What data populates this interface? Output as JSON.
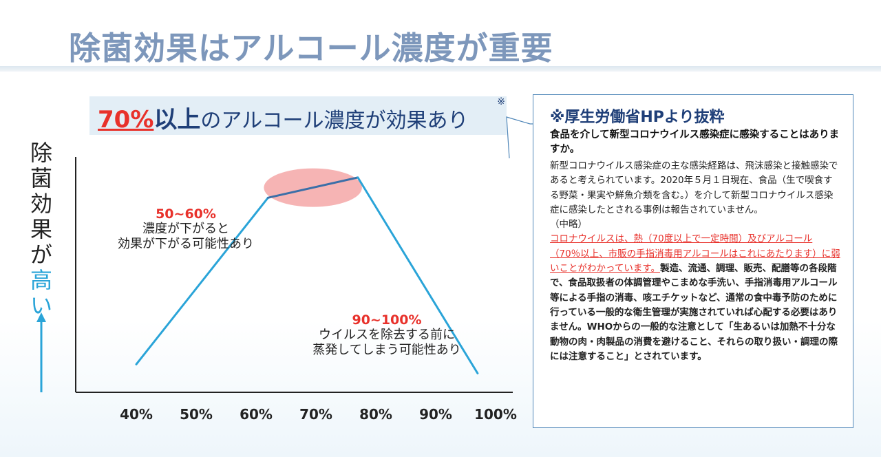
{
  "page": {
    "title": "除菌効果はアルコール濃度が重要"
  },
  "headline": {
    "percent": "70%",
    "ijo": "以上",
    "rest": "のアルコール濃度が効果あり",
    "mark": "※"
  },
  "y_axis": {
    "label_plain": "除菌効果が",
    "label_highlight": "高い"
  },
  "chart_data": {
    "type": "line",
    "title": "",
    "xlabel": "",
    "ylabel": "除菌効果が高い",
    "categories": [
      "40%",
      "50%",
      "60%",
      "70%",
      "80%",
      "90%",
      "100%"
    ],
    "x": [
      40,
      62,
      77,
      97
    ],
    "series": [
      {
        "name": "",
        "values": [
          0.1,
          0.84,
          0.93,
          0.06
        ]
      }
    ],
    "ylim": [
      0,
      1
    ],
    "highlight": {
      "x_range": [
        62,
        77
      ],
      "color": "#f4a7a7"
    },
    "line_colors": {
      "main": "#2aa4d8",
      "top": "#3b6fa8"
    },
    "annotations": [
      {
        "percent": "50~60%",
        "lines": [
          "濃度が下がると",
          "効果が下がる可能性あり"
        ]
      },
      {
        "percent": "90~100%",
        "lines": [
          "ウイルスを除去する前に",
          "蒸発してしまう可能性あり"
        ]
      }
    ]
  },
  "panel": {
    "title": "※厚生労働省HPより抜粋",
    "question": "食品を介して新型コロナウイルス感染症に感染することはありますか。",
    "body_1": "新型コロナウイルス感染症の主な感染経路は、飛沫感染と接触感染であると考えられています。2020年５月１日現在、食品（生で喫食する野菜・果実や鮮魚介類を含む。）を介して新型コロナウイルス感染症に感染したとされる事例は報告されていません。",
    "omission": "（中略）",
    "body_red": "コロナウイルスは、熱（70度以上で一定時間）及びアルコール（70％以上、市販の手指消毒用アルコールはこれにあたります）に弱いことがわかっています。",
    "body_2": "製造、流通、調理、販売、配膳等の各段階で、食品取扱者の体調管理やこまめな手洗い、手指消毒用アルコール等による手指の消毒、咳エチケットなど、通常の食中毒予防のために行っている一般的な衛生管理が実施されていれば心配する必要はありません。WHOからの一般的な注意として「生あるいは加熱不十分な動物の肉・肉製品の消費を避けること、それらの取り扱い・調理の際には注意すること」とされています。"
  }
}
